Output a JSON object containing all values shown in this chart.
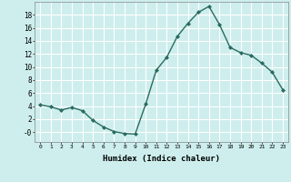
{
  "x": [
    0,
    1,
    2,
    3,
    4,
    5,
    6,
    7,
    8,
    9,
    10,
    11,
    12,
    13,
    14,
    15,
    16,
    17,
    18,
    19,
    20,
    21,
    22,
    23
  ],
  "y": [
    4.2,
    3.9,
    3.4,
    3.8,
    3.3,
    1.8,
    0.8,
    0.1,
    -0.2,
    -0.3,
    4.3,
    9.5,
    11.5,
    14.7,
    16.7,
    18.4,
    19.3,
    16.5,
    13.0,
    12.2,
    11.8,
    10.6,
    9.2,
    6.5
  ],
  "line_color": "#2a6b5e",
  "marker": "D",
  "marker_size": 2.0,
  "background_color": "#cdeeed",
  "grid_color": "#ffffff",
  "xlabel": "Humidex (Indice chaleur)",
  "ylabel": "",
  "xlim": [
    -0.5,
    23.5
  ],
  "ylim": [
    -1.5,
    20.0
  ],
  "yticks": [
    0,
    2,
    4,
    6,
    8,
    10,
    12,
    14,
    16,
    18
  ],
  "xticks": [
    0,
    1,
    2,
    3,
    4,
    5,
    6,
    7,
    8,
    9,
    10,
    11,
    12,
    13,
    14,
    15,
    16,
    17,
    18,
    19,
    20,
    21,
    22,
    23
  ],
  "xtick_labels": [
    "0",
    "1",
    "2",
    "3",
    "4",
    "5",
    "6",
    "7",
    "8",
    "9",
    "10",
    "11",
    "12",
    "13",
    "14",
    "15",
    "16",
    "17",
    "18",
    "19",
    "20",
    "21",
    "22",
    "23"
  ],
  "ytick_labels": [
    "-0",
    "2",
    "4",
    "6",
    "8",
    "10",
    "12",
    "14",
    "16",
    "18"
  ],
  "font_family": "monospace"
}
